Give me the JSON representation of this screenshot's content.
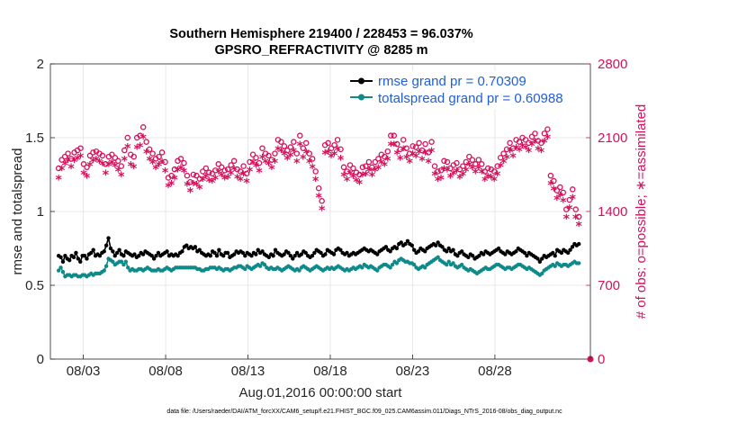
{
  "chart_data": {
    "type": "line",
    "title": "Southern Hemisphere 219400 / 228453 = 96.037%",
    "subtitle": "GPSRO_REFRACTIVITY @ 8285 m",
    "xlabel": "Aug.01,2016 00:00:00 start",
    "ylabel": "rmse and totalspread",
    "y2label": "# of obs: o=possible; ∗=assimilated",
    "xlim": [
      0,
      32.8
    ],
    "ylim": [
      0,
      2
    ],
    "y2lim": [
      0,
      2800
    ],
    "x_tick_values": [
      2,
      7,
      12,
      17,
      22,
      27
    ],
    "x_tick_labels": [
      "08/03",
      "08/08",
      "08/13",
      "08/18",
      "08/23",
      "08/28"
    ],
    "y_ticks": [
      "0",
      "0.5",
      "1",
      "1.5",
      "2"
    ],
    "y2_ticks": [
      "0",
      "700",
      "1400",
      "2100",
      "2800"
    ],
    "grid": true,
    "legend_position": "top-right",
    "legend": [
      "rmse grand pr = 0.70309",
      "totalspread grand pr = 0.60988"
    ],
    "colors": {
      "rmse": "#000000",
      "spread": "#0e8a8a",
      "obs": "#d6105a",
      "legend_text": "#1f5fd6"
    },
    "series": [
      {
        "name": "rmse grand pr = 0.70309",
        "axis": "left",
        "values": [
          0.7,
          0.69,
          0.66,
          0.7,
          0.68,
          0.67,
          0.7,
          0.69,
          0.72,
          0.68,
          0.66,
          0.7,
          0.7,
          0.68,
          0.71,
          0.72,
          0.74,
          0.7,
          0.71,
          0.7,
          0.72,
          0.73,
          0.77,
          0.82,
          0.75,
          0.73,
          0.7,
          0.72,
          0.74,
          0.71,
          0.7,
          0.73,
          0.72,
          0.71,
          0.7,
          0.71,
          0.69,
          0.7,
          0.72,
          0.71,
          0.73,
          0.72,
          0.71,
          0.7,
          0.68,
          0.7,
          0.72,
          0.7,
          0.71,
          0.72,
          0.73,
          0.7,
          0.71,
          0.7,
          0.71,
          0.7,
          0.72,
          0.73,
          0.76,
          0.77,
          0.75,
          0.76,
          0.75,
          0.76,
          0.73,
          0.74,
          0.72,
          0.71,
          0.7,
          0.71,
          0.7,
          0.73,
          0.72,
          0.7,
          0.74,
          0.71,
          0.7,
          0.72,
          0.72,
          0.69,
          0.7,
          0.71,
          0.73,
          0.72,
          0.73,
          0.72,
          0.7,
          0.72,
          0.71,
          0.7,
          0.72,
          0.71,
          0.74,
          0.72,
          0.73,
          0.71,
          0.7,
          0.69,
          0.71,
          0.7,
          0.74,
          0.72,
          0.71,
          0.7,
          0.71,
          0.73,
          0.72,
          0.7,
          0.68,
          0.7,
          0.72,
          0.7,
          0.71,
          0.73,
          0.72,
          0.7,
          0.69,
          0.7,
          0.72,
          0.74,
          0.73,
          0.72,
          0.7,
          0.71,
          0.74,
          0.73,
          0.72,
          0.71,
          0.74,
          0.75,
          0.74,
          0.72,
          0.71,
          0.72,
          0.7,
          0.71,
          0.72,
          0.71,
          0.72,
          0.73,
          0.74,
          0.75,
          0.74,
          0.73,
          0.74,
          0.73,
          0.72,
          0.71,
          0.73,
          0.74,
          0.75,
          0.76,
          0.74,
          0.73,
          0.75,
          0.76,
          0.75,
          0.78,
          0.79,
          0.77,
          0.78,
          0.8,
          0.78,
          0.77,
          0.74,
          0.72,
          0.73,
          0.75,
          0.74,
          0.73,
          0.75,
          0.76,
          0.77,
          0.78,
          0.77,
          0.79,
          0.77,
          0.76,
          0.74,
          0.73,
          0.75,
          0.73,
          0.74,
          0.71,
          0.7,
          0.72,
          0.73,
          0.71,
          0.7,
          0.69,
          0.71,
          0.7,
          0.68,
          0.69,
          0.7,
          0.72,
          0.71,
          0.73,
          0.72,
          0.71,
          0.72,
          0.73,
          0.74,
          0.75,
          0.73,
          0.72,
          0.71,
          0.73,
          0.72,
          0.71,
          0.72,
          0.73,
          0.75,
          0.74,
          0.73,
          0.72,
          0.7,
          0.72,
          0.71,
          0.7,
          0.69,
          0.68,
          0.66,
          0.68,
          0.7,
          0.69,
          0.7,
          0.71,
          0.72,
          0.7,
          0.74,
          0.73,
          0.72,
          0.74,
          0.73,
          0.72,
          0.74,
          0.76,
          0.78,
          0.77,
          0.78
        ]
      },
      {
        "name": "totalspread grand pr = 0.60988",
        "axis": "left",
        "values": [
          0.6,
          0.62,
          0.59,
          0.56,
          0.57,
          0.57,
          0.56,
          0.57,
          0.57,
          0.56,
          0.56,
          0.57,
          0.57,
          0.56,
          0.57,
          0.58,
          0.57,
          0.58,
          0.58,
          0.58,
          0.59,
          0.6,
          0.63,
          0.68,
          0.67,
          0.66,
          0.64,
          0.65,
          0.66,
          0.66,
          0.64,
          0.66,
          0.62,
          0.6,
          0.61,
          0.6,
          0.6,
          0.61,
          0.61,
          0.6,
          0.61,
          0.62,
          0.61,
          0.6,
          0.6,
          0.6,
          0.61,
          0.6,
          0.6,
          0.61,
          0.62,
          0.61,
          0.6,
          0.61,
          0.62,
          0.62,
          0.62,
          0.62,
          0.62,
          0.62,
          0.62,
          0.62,
          0.62,
          0.62,
          0.61,
          0.61,
          0.6,
          0.6,
          0.61,
          0.61,
          0.62,
          0.62,
          0.62,
          0.61,
          0.62,
          0.61,
          0.6,
          0.61,
          0.61,
          0.6,
          0.61,
          0.62,
          0.62,
          0.63,
          0.63,
          0.62,
          0.61,
          0.63,
          0.62,
          0.61,
          0.62,
          0.63,
          0.64,
          0.63,
          0.65,
          0.64,
          0.62,
          0.61,
          0.62,
          0.61,
          0.61,
          0.62,
          0.61,
          0.6,
          0.61,
          0.62,
          0.63,
          0.62,
          0.61,
          0.6,
          0.61,
          0.6,
          0.62,
          0.63,
          0.62,
          0.61,
          0.6,
          0.61,
          0.62,
          0.63,
          0.62,
          0.61,
          0.6,
          0.61,
          0.62,
          0.61,
          0.62,
          0.61,
          0.62,
          0.63,
          0.62,
          0.61,
          0.6,
          0.61,
          0.6,
          0.61,
          0.62,
          0.61,
          0.62,
          0.63,
          0.62,
          0.64,
          0.63,
          0.62,
          0.63,
          0.62,
          0.61,
          0.6,
          0.62,
          0.63,
          0.64,
          0.64,
          0.63,
          0.62,
          0.64,
          0.66,
          0.65,
          0.67,
          0.68,
          0.67,
          0.66,
          0.66,
          0.65,
          0.65,
          0.64,
          0.62,
          0.61,
          0.62,
          0.63,
          0.62,
          0.64,
          0.65,
          0.66,
          0.67,
          0.68,
          0.69,
          0.67,
          0.66,
          0.65,
          0.64,
          0.66,
          0.64,
          0.65,
          0.63,
          0.62,
          0.63,
          0.64,
          0.62,
          0.61,
          0.6,
          0.61,
          0.6,
          0.59,
          0.58,
          0.59,
          0.6,
          0.61,
          0.62,
          0.61,
          0.61,
          0.62,
          0.63,
          0.64,
          0.64,
          0.63,
          0.62,
          0.61,
          0.62,
          0.62,
          0.61,
          0.62,
          0.63,
          0.64,
          0.64,
          0.63,
          0.62,
          0.61,
          0.62,
          0.61,
          0.6,
          0.59,
          0.58,
          0.57,
          0.58,
          0.6,
          0.61,
          0.62,
          0.63,
          0.64,
          0.63,
          0.65,
          0.64,
          0.63,
          0.64,
          0.64,
          0.63,
          0.64,
          0.65,
          0.66,
          0.65,
          0.65
        ]
      },
      {
        "name": "possible",
        "axis": "right",
        "marker": "o",
        "values": [
          1810,
          1890,
          1920,
          1950,
          1900,
          1960,
          1980,
          2000,
          1850,
          1820,
          1930,
          1960,
          1970,
          1950,
          1930,
          1850,
          1920,
          1940,
          1910,
          1880,
          1830,
          1980,
          2100,
          1940,
          1920,
          2100,
          2120,
          2200,
          2060,
          1990,
          1950,
          1900,
          1920,
          1960,
          1870,
          1720,
          1740,
          1800,
          1880,
          1900,
          1860,
          1740,
          1680,
          1750,
          1740,
          1710,
          1780,
          1810,
          1770,
          1760,
          1790,
          1850,
          1820,
          1790,
          1800,
          1840,
          1880,
          1800,
          1780,
          1830,
          1760,
          1870,
          1940,
          1910,
          1860,
          2000,
          1950,
          1930,
          1890,
          1950,
          2080,
          2060,
          2020,
          1980,
          2010,
          2060,
          1950,
          2120,
          2000,
          2050,
          1950,
          1900,
          1780,
          1620,
          1500,
          2030,
          2050,
          2000,
          2030,
          2080,
          1990,
          1820,
          1780,
          1840,
          1810,
          1770,
          1750,
          1820,
          1830,
          1870,
          1820,
          1870,
          1900,
          1940,
          1920,
          1970,
          2120,
          2120,
          2040,
          1990,
          2080,
          2000,
          1950,
          2020,
          2010,
          2050,
          1980,
          2040,
          1960,
          2060,
          1830,
          1780,
          1790,
          1880,
          1870,
          1810,
          1840,
          1860,
          1800,
          1830,
          1870,
          1920,
          1890,
          1850,
          1890,
          1850,
          1780,
          1810,
          1800,
          1780,
          1830,
          1910,
          1950,
          1990,
          2050,
          2000,
          2080,
          2060,
          2100,
          2080,
          2050,
          2110,
          2140,
          2070,
          2050,
          2140,
          2180,
          1740,
          1690,
          1600,
          1630,
          1580,
          1420,
          1510,
          1610,
          1420,
          1350
        ]
      },
      {
        "name": "assimilated",
        "axis": "right",
        "marker": "*",
        "values": [
          1710,
          1800,
          1850,
          1880,
          1820,
          1880,
          1900,
          1920,
          1760,
          1730,
          1840,
          1880,
          1890,
          1870,
          1850,
          1760,
          1840,
          1860,
          1830,
          1790,
          1740,
          1890,
          2010,
          1840,
          1820,
          2000,
          2020,
          2100,
          1960,
          1890,
          1860,
          1810,
          1840,
          1870,
          1780,
          1640,
          1660,
          1710,
          1790,
          1810,
          1780,
          1650,
          1590,
          1660,
          1650,
          1620,
          1700,
          1730,
          1690,
          1680,
          1710,
          1770,
          1740,
          1710,
          1720,
          1760,
          1800,
          1720,
          1700,
          1750,
          1680,
          1790,
          1860,
          1830,
          1780,
          1910,
          1870,
          1850,
          1810,
          1870,
          1990,
          1970,
          1940,
          1900,
          1930,
          1970,
          1870,
          2030,
          1910,
          1960,
          1870,
          1820,
          1700,
          1540,
          1420,
          1950,
          1960,
          1920,
          1940,
          1990,
          1900,
          1740,
          1700,
          1760,
          1730,
          1690,
          1670,
          1740,
          1750,
          1790,
          1740,
          1790,
          1810,
          1860,
          1840,
          1890,
          2030,
          2030,
          1950,
          1900,
          1990,
          1910,
          1870,
          1940,
          1920,
          1960,
          1890,
          1950,
          1870,
          1970,
          1750,
          1700,
          1710,
          1800,
          1790,
          1730,
          1760,
          1780,
          1720,
          1750,
          1790,
          1840,
          1810,
          1770,
          1810,
          1770,
          1700,
          1730,
          1720,
          1700,
          1750,
          1830,
          1870,
          1910,
          1970,
          1920,
          2000,
          1980,
          2020,
          2000,
          1970,
          2030,
          2060,
          1990,
          1970,
          2060,
          2100,
          1660,
          1610,
          1520,
          1550,
          1500,
          1340,
          1430,
          1530,
          1340,
          1270
        ]
      }
    ]
  },
  "footer": "data file: /Users/raeder/DAI/ATM_forcXX/CAM6_setup/f.e21.FHIST_BGC.f09_025.CAM6assim.011/Diags_NTrS_2016-08/obs_diag_output.nc"
}
